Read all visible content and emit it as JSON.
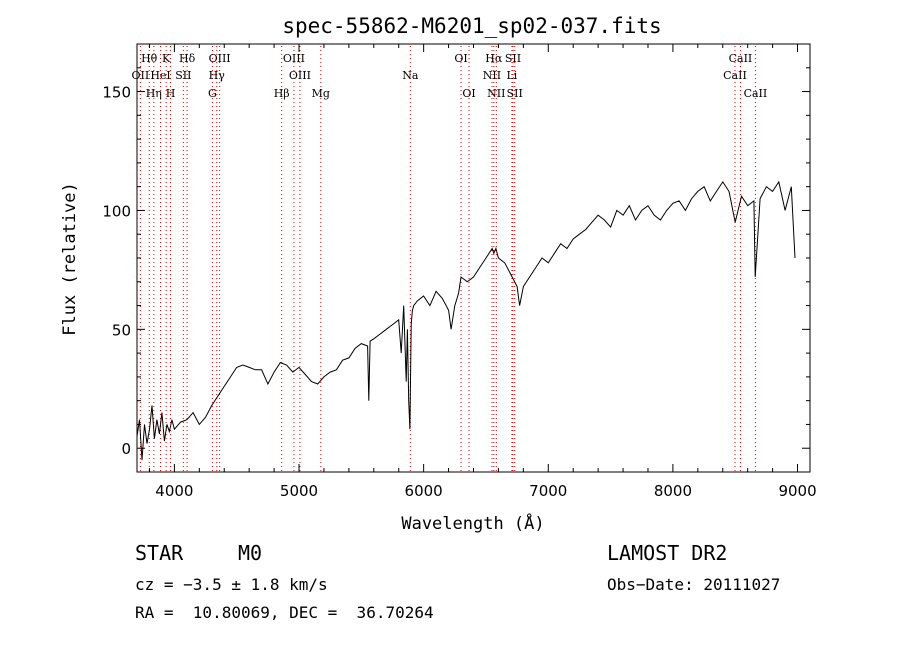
{
  "chart_data": {
    "type": "line",
    "title": "spec-55862-M6201_sp02-037.fits",
    "xlabel": "Wavelength (Å)",
    "ylabel": "Flux (relative)",
    "xlim": [
      3700,
      9100
    ],
    "ylim": [
      -10,
      170
    ],
    "x_ticks": [
      4000,
      5000,
      6000,
      7000,
      8000,
      9000
    ],
    "y_ticks": [
      0,
      50,
      100,
      150
    ],
    "grid": false,
    "series": [
      {
        "x": [
          3700,
          3720,
          3740,
          3760,
          3780,
          3800,
          3820,
          3840,
          3860,
          3880,
          3900,
          3920,
          3940,
          3960,
          3980,
          4000,
          4050,
          4100,
          4150,
          4200,
          4250,
          4300,
          4350,
          4400,
          4450,
          4500,
          4550,
          4600,
          4650,
          4700,
          4750,
          4800,
          4850,
          4900,
          4950,
          5000,
          5050,
          5100,
          5150,
          5200,
          5250,
          5300,
          5350,
          5400,
          5450,
          5500,
          5550,
          5560,
          5570,
          5600,
          5650,
          5700,
          5750,
          5800,
          5820,
          5840,
          5860,
          5870,
          5880,
          5890,
          5900,
          5910,
          5920,
          5950,
          6000,
          6050,
          6100,
          6150,
          6200,
          6220,
          6250,
          6280,
          6300,
          6350,
          6400,
          6450,
          6500,
          6550,
          6563,
          6580,
          6600,
          6650,
          6700,
          6750,
          6770,
          6800,
          6850,
          6900,
          6950,
          7000,
          7050,
          7100,
          7150,
          7200,
          7250,
          7300,
          7350,
          7400,
          7450,
          7500,
          7550,
          7600,
          7650,
          7700,
          7750,
          7800,
          7850,
          7900,
          7950,
          8000,
          8050,
          8100,
          8150,
          8200,
          8250,
          8300,
          8350,
          8400,
          8450,
          8500,
          8550,
          8600,
          8650,
          8660,
          8700,
          8750,
          8800,
          8850,
          8900,
          8950,
          8980
        ],
        "y": [
          5,
          12,
          -5,
          10,
          2,
          8,
          18,
          4,
          12,
          6,
          15,
          3,
          10,
          7,
          12,
          8,
          11,
          12,
          15,
          10,
          13,
          18,
          22,
          26,
          30,
          34,
          35,
          34,
          33,
          33,
          27,
          32,
          36,
          35,
          32,
          34,
          31,
          28,
          27,
          30,
          32,
          33,
          37,
          38,
          42,
          44,
          43,
          20,
          45,
          46,
          48,
          50,
          52,
          54,
          40,
          60,
          28,
          50,
          20,
          8,
          52,
          58,
          60,
          62,
          64,
          60,
          66,
          63,
          58,
          50,
          60,
          65,
          72,
          70,
          72,
          76,
          80,
          84,
          82,
          84,
          80,
          78,
          73,
          68,
          60,
          68,
          72,
          76,
          80,
          78,
          82,
          86,
          84,
          88,
          90,
          92,
          95,
          98,
          96,
          93,
          100,
          98,
          102,
          96,
          100,
          102,
          98,
          96,
          100,
          103,
          104,
          100,
          105,
          108,
          110,
          104,
          108,
          112,
          108,
          95,
          106,
          102,
          104,
          72,
          105,
          110,
          108,
          112,
          100,
          110,
          80
        ]
      }
    ],
    "spectral_lines": [
      {
        "label": "Hθ",
        "x": 3798,
        "row": 1
      },
      {
        "label": "K",
        "x": 3934,
        "row": 1
      },
      {
        "label": "Hδ",
        "x": 4102,
        "row": 1
      },
      {
        "label": "OIII",
        "x": 4363,
        "row": 1
      },
      {
        "label": "OIII",
        "x": 4959,
        "row": 1
      },
      {
        "label": "OI",
        "x": 6300,
        "row": 1
      },
      {
        "label": "Hα",
        "x": 6563,
        "row": 1
      },
      {
        "label": "SII",
        "x": 6717,
        "row": 1
      },
      {
        "label": "CaII",
        "x": 8542,
        "row": 1
      },
      {
        "label": "OII",
        "x": 3727,
        "row": 2
      },
      {
        "label": "HeI",
        "x": 3889,
        "row": 2
      },
      {
        "label": "SII",
        "x": 4072,
        "row": 2
      },
      {
        "label": "Hγ",
        "x": 4340,
        "row": 2
      },
      {
        "label": "OIII",
        "x": 5007,
        "row": 2
      },
      {
        "label": "Na",
        "x": 5893,
        "row": 2
      },
      {
        "label": "NII",
        "x": 6548,
        "row": 2
      },
      {
        "label": "Li",
        "x": 6708,
        "row": 2
      },
      {
        "label": "CaII",
        "x": 8498,
        "row": 2
      },
      {
        "label": "Hη",
        "x": 3835,
        "row": 3
      },
      {
        "label": "H",
        "x": 3969,
        "row": 3
      },
      {
        "label": "G",
        "x": 4305,
        "row": 3
      },
      {
        "label": "Hβ",
        "x": 4861,
        "row": 3
      },
      {
        "label": "Mg",
        "x": 5175,
        "row": 3
      },
      {
        "label": "OI",
        "x": 6364,
        "row": 3
      },
      {
        "label": "NII",
        "x": 6583,
        "row": 3
      },
      {
        "label": "SII",
        "x": 6731,
        "row": 3
      },
      {
        "label": "CaII",
        "x": 8662,
        "row": 3
      }
    ],
    "colors": {
      "line": "#000000",
      "marker_lines": "#cc0000",
      "axes": "#000000"
    }
  },
  "info": {
    "object_class": "STAR",
    "subclass": "M0",
    "survey": "LAMOST DR2",
    "cz": "cz = −3.5 ± 1.8 km/s",
    "obs_date": "Obs−Date: 20111027",
    "coords": "RA =  10.80069, DEC =  36.70264"
  }
}
